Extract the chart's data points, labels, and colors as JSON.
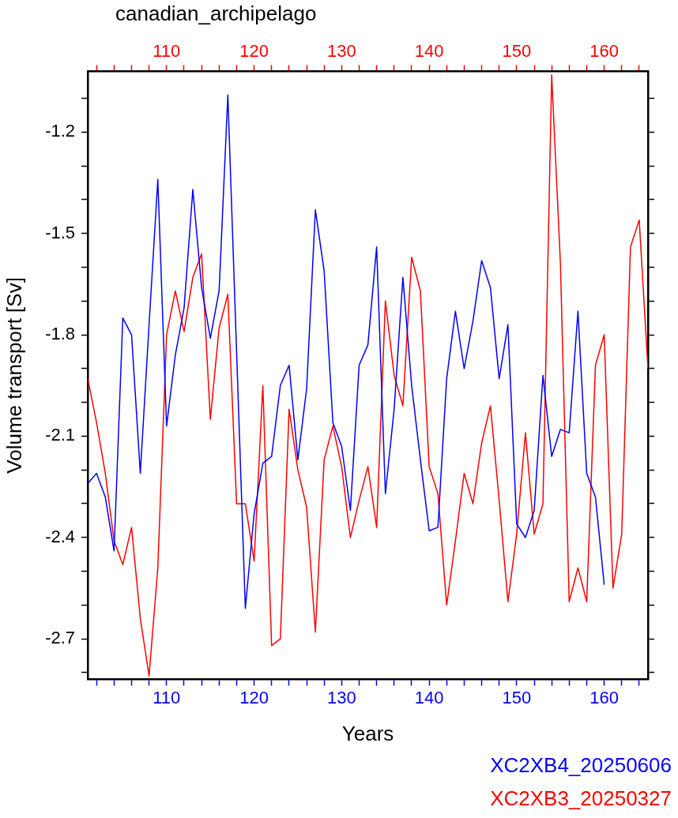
{
  "chart_data": {
    "type": "line",
    "title": "canadian_archipelago",
    "xlabel": "Years",
    "ylabel": "Volume transport [Sv]",
    "xlim": [
      101,
      165
    ],
    "x2lim": [
      101,
      165
    ],
    "xticks": [
      {
        "value": 102,
        "label": null
      },
      {
        "value": 104,
        "label": null
      },
      {
        "value": 106,
        "label": null
      },
      {
        "value": 108,
        "label": null
      },
      110,
      {
        "value": 112,
        "label": null
      },
      {
        "value": 114,
        "label": null
      },
      {
        "value": 116,
        "label": null
      },
      {
        "value": 118,
        "label": null
      },
      120,
      {
        "value": 122,
        "label": null
      },
      {
        "value": 124,
        "label": null
      },
      {
        "value": 126,
        "label": null
      },
      {
        "value": 128,
        "label": null
      },
      130,
      {
        "value": 132,
        "label": null
      },
      {
        "value": 134,
        "label": null
      },
      {
        "value": 136,
        "label": null
      },
      {
        "value": 138,
        "label": null
      },
      140,
      {
        "value": 142,
        "label": null
      },
      {
        "value": 144,
        "label": null
      },
      {
        "value": 146,
        "label": null
      },
      {
        "value": 148,
        "label": null
      },
      150,
      {
        "value": 152,
        "label": null
      },
      {
        "value": 154,
        "label": null
      },
      {
        "value": 156,
        "label": null
      },
      {
        "value": 158,
        "label": null
      },
      160,
      {
        "value": 162,
        "label": null
      },
      {
        "value": 164,
        "label": null
      }
    ],
    "x2ticks": [
      {
        "value": 102,
        "label": null
      },
      {
        "value": 104,
        "label": null
      },
      {
        "value": 106,
        "label": null
      },
      {
        "value": 108,
        "label": null
      },
      110,
      {
        "value": 112,
        "label": null
      },
      {
        "value": 114,
        "label": null
      },
      {
        "value": 116,
        "label": null
      },
      {
        "value": 118,
        "label": null
      },
      120,
      {
        "value": 122,
        "label": null
      },
      {
        "value": 124,
        "label": null
      },
      {
        "value": 126,
        "label": null
      },
      {
        "value": 128,
        "label": null
      },
      130,
      {
        "value": 132,
        "label": null
      },
      {
        "value": 134,
        "label": null
      },
      {
        "value": 136,
        "label": null
      },
      {
        "value": 138,
        "label": null
      },
      140,
      {
        "value": 142,
        "label": null
      },
      {
        "value": 144,
        "label": null
      },
      {
        "value": 146,
        "label": null
      },
      {
        "value": 148,
        "label": null
      },
      150,
      {
        "value": 152,
        "label": null
      },
      {
        "value": 154,
        "label": null
      },
      {
        "value": 156,
        "label": null
      },
      {
        "value": 158,
        "label": null
      },
      160,
      {
        "value": 162,
        "label": null
      },
      {
        "value": 164,
        "label": null
      }
    ],
    "ylim": [
      -2.82,
      -1.02
    ],
    "yticks": [
      {
        "value": -2.8,
        "label": null
      },
      -2.7,
      {
        "value": -2.6,
        "label": null
      },
      {
        "value": -2.5,
        "label": null
      },
      -2.4,
      {
        "value": -2.3,
        "label": null
      },
      {
        "value": -2.2,
        "label": null
      },
      -2.1,
      {
        "value": -2.0,
        "label": null
      },
      {
        "value": -1.9,
        "label": null
      },
      -1.8,
      {
        "value": -1.7,
        "label": null
      },
      {
        "value": -1.6,
        "label": null
      },
      -1.5,
      {
        "value": -1.4,
        "label": null
      },
      {
        "value": -1.3,
        "label": null
      },
      -1.2,
      {
        "value": -1.1,
        "label": null
      }
    ],
    "grid": false,
    "legend": "bottom right",
    "marker": "none",
    "line_style": "solid",
    "series": [
      {
        "name": "XC2XB4_20250606",
        "color": "#0000ff",
        "x": [
          101,
          102,
          103,
          104,
          105,
          106,
          107,
          108,
          109,
          110,
          111,
          112,
          113,
          114,
          115,
          116,
          117,
          118,
          119,
          120,
          121,
          122,
          123,
          124,
          125,
          126,
          127,
          128,
          129,
          130,
          131,
          132,
          133,
          134,
          135,
          136,
          137,
          138,
          139,
          140,
          141,
          142,
          143,
          144,
          145,
          146,
          147,
          148,
          149,
          150,
          151,
          152,
          153,
          154,
          155,
          156,
          157,
          158,
          159,
          160
        ],
        "values": [
          -2.24,
          -2.21,
          -2.28,
          -2.44,
          -1.75,
          -1.8,
          -2.21,
          -1.77,
          -1.34,
          -2.07,
          -1.86,
          -1.72,
          -1.37,
          -1.66,
          -1.81,
          -1.67,
          -1.09,
          -1.85,
          -2.61,
          -2.33,
          -2.18,
          -2.16,
          -1.95,
          -1.89,
          -2.17,
          -1.96,
          -1.43,
          -1.61,
          -2.06,
          -2.13,
          -2.32,
          -1.89,
          -1.83,
          -1.54,
          -2.27,
          -2.02,
          -1.63,
          -1.95,
          -2.17,
          -2.38,
          -2.37,
          -1.93,
          -1.73,
          -1.9,
          -1.76,
          -1.58,
          -1.66,
          -1.93,
          -1.77,
          -2.36,
          -2.4,
          -2.32,
          -1.92,
          -2.16,
          -2.08,
          -2.09,
          -1.73,
          -2.21,
          -2.28,
          -2.54
        ]
      },
      {
        "name": "XC2XB3_20250327",
        "color": "#ff0000",
        "axis": "x2",
        "x": [
          101,
          102,
          103,
          104,
          105,
          106,
          107,
          108,
          109,
          110,
          111,
          112,
          113,
          114,
          115,
          116,
          117,
          118,
          119,
          120,
          121,
          122,
          123,
          124,
          125,
          126,
          127,
          128,
          129,
          130,
          131,
          132,
          133,
          134,
          135,
          136,
          137,
          138,
          139,
          140,
          141,
          142,
          143,
          144,
          145,
          146,
          147,
          148,
          149,
          150,
          151,
          152,
          153,
          154,
          155,
          156,
          157,
          158,
          159,
          160,
          161,
          162,
          163,
          164,
          165
        ],
        "values": [
          -1.93,
          -2.06,
          -2.21,
          -2.41,
          -2.48,
          -2.37,
          -2.64,
          -2.81,
          -2.49,
          -1.8,
          -1.67,
          -1.79,
          -1.63,
          -1.56,
          -2.05,
          -1.78,
          -1.68,
          -2.3,
          -2.3,
          -2.47,
          -1.95,
          -2.72,
          -2.7,
          -2.02,
          -2.2,
          -2.31,
          -2.68,
          -2.17,
          -2.07,
          -2.19,
          -2.4,
          -2.29,
          -2.19,
          -2.37,
          -1.7,
          -1.92,
          -2.01,
          -1.57,
          -1.67,
          -2.19,
          -2.27,
          -2.6,
          -2.41,
          -2.21,
          -2.3,
          -2.12,
          -2.01,
          -2.29,
          -2.59,
          -2.39,
          -2.09,
          -2.39,
          -2.3,
          -1.03,
          -1.59,
          -2.59,
          -2.49,
          -2.59,
          -1.89,
          -1.8,
          -2.55,
          -2.39,
          -1.54,
          -1.46,
          -1.9
        ]
      }
    ]
  }
}
